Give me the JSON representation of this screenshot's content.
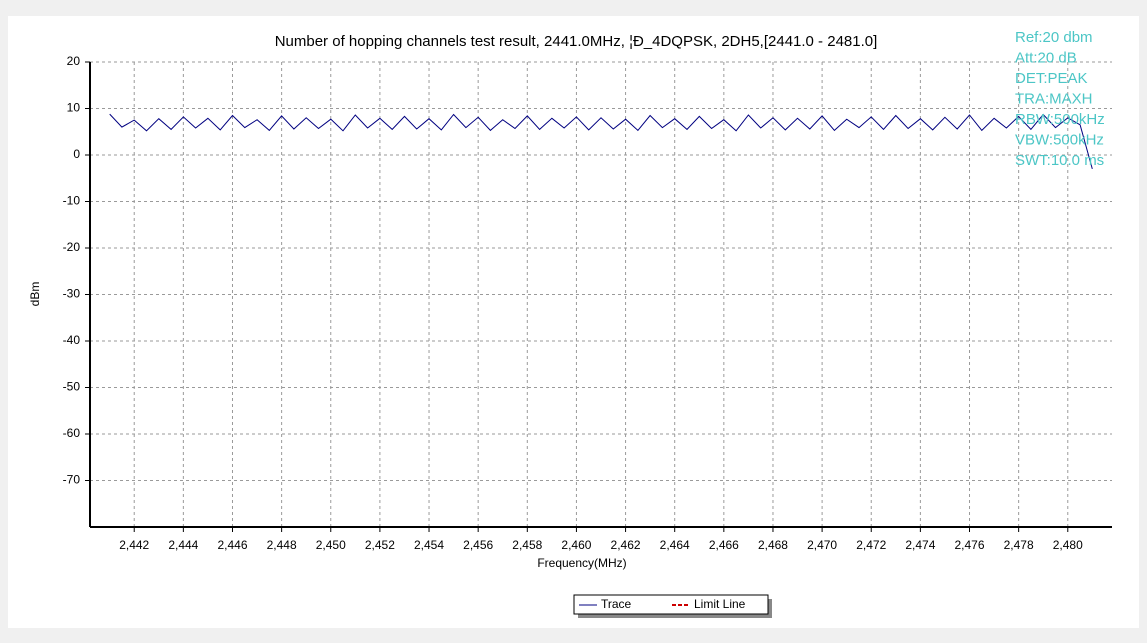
{
  "chart_data": {
    "type": "line",
    "title": "Number of hopping channels test result, 2441.0MHz, ¦Đ_4DQPSK, 2DH5,[2441.0 - 2481.0]",
    "x_label": "Frequency(MHz)",
    "y_label": "dBm",
    "info": [
      "Ref:20 dbm",
      "Att:20 dB",
      "DET:PEAK",
      "TRA:MAXH",
      "RBW:500kHz",
      "VBW:500kHz",
      "SWT:10.0 ms"
    ],
    "x": [
      2441,
      2441.5,
      2442,
      2442.5,
      2443,
      2443.5,
      2444,
      2444.5,
      2445,
      2445.5,
      2446,
      2446.5,
      2447,
      2447.5,
      2448,
      2448.5,
      2449,
      2449.5,
      2450,
      2450.5,
      2451,
      2451.5,
      2452,
      2452.5,
      2453,
      2453.5,
      2454,
      2454.5,
      2455,
      2455.5,
      2456,
      2456.5,
      2457,
      2457.5,
      2458,
      2458.5,
      2459,
      2459.5,
      2460,
      2460.5,
      2461,
      2461.5,
      2462,
      2462.5,
      2463,
      2463.5,
      2464,
      2464.5,
      2465,
      2465.5,
      2466,
      2466.5,
      2467,
      2467.5,
      2468,
      2468.5,
      2469,
      2469.5,
      2470,
      2470.5,
      2471,
      2471.5,
      2472,
      2472.5,
      2473,
      2473.5,
      2474,
      2474.5,
      2475,
      2475.5,
      2476,
      2476.5,
      2477,
      2477.5,
      2478,
      2478.5,
      2479,
      2479.5,
      2480,
      2480.5,
      2481
    ],
    "series": [
      {
        "name": "Trace",
        "color": "#000080",
        "values": [
          8.8,
          6.0,
          7.5,
          5.2,
          7.8,
          5.5,
          8.2,
          5.8,
          7.9,
          5.4,
          8.5,
          5.9,
          7.6,
          5.3,
          8.4,
          5.6,
          8.0,
          5.7,
          7.7,
          5.2,
          8.6,
          5.8,
          7.9,
          5.5,
          8.3,
          5.6,
          7.8,
          5.4,
          8.7,
          5.9,
          8.1,
          5.3,
          7.6,
          5.7,
          8.4,
          5.5,
          7.9,
          5.8,
          8.2,
          5.4,
          8.0,
          5.6,
          7.7,
          5.3,
          8.5,
          5.9,
          7.8,
          5.5,
          8.3,
          5.7,
          7.6,
          5.2,
          8.6,
          5.8,
          8.0,
          5.4,
          7.9,
          5.6,
          8.4,
          5.3,
          7.7,
          5.9,
          8.2,
          5.5,
          8.5,
          5.7,
          7.8,
          5.4,
          8.1,
          5.6,
          8.6,
          5.3,
          7.9,
          5.8,
          8.3,
          5.5,
          8.7,
          5.9,
          8.0,
          6.5,
          -3.0
        ]
      }
    ],
    "limit_line": {
      "name": "Limit Line",
      "color": "#cc0000"
    },
    "title_color": "#1c1cc8",
    "xlim": [
      2440.2,
      2481.8
    ],
    "ylim": [
      -80,
      20
    ],
    "xticks": [
      {
        "value": 2442,
        "label": "2,442"
      },
      {
        "value": 2444,
        "label": "2,444"
      },
      {
        "value": 2446,
        "label": "2,446"
      },
      {
        "value": 2448,
        "label": "2,448"
      },
      {
        "value": 2450,
        "label": "2,450"
      },
      {
        "value": 2452,
        "label": "2,452"
      },
      {
        "value": 2454,
        "label": "2,454"
      },
      {
        "value": 2456,
        "label": "2,456"
      },
      {
        "value": 2458,
        "label": "2,458"
      },
      {
        "value": 2460,
        "label": "2,460"
      },
      {
        "value": 2462,
        "label": "2,462"
      },
      {
        "value": 2464,
        "label": "2,464"
      },
      {
        "value": 2466,
        "label": "2,466"
      },
      {
        "value": 2468,
        "label": "2,468"
      },
      {
        "value": 2470,
        "label": "2,470"
      },
      {
        "value": 2472,
        "label": "2,472"
      },
      {
        "value": 2474,
        "label": "2,474"
      },
      {
        "value": 2476,
        "label": "2,476"
      },
      {
        "value": 2478,
        "label": "2,478"
      },
      {
        "value": 2480,
        "label": "2,480"
      }
    ],
    "yticks": [
      20,
      10,
      0,
      -10,
      -20,
      -30,
      -40,
      -50,
      -60,
      -70
    ],
    "grid": true
  }
}
